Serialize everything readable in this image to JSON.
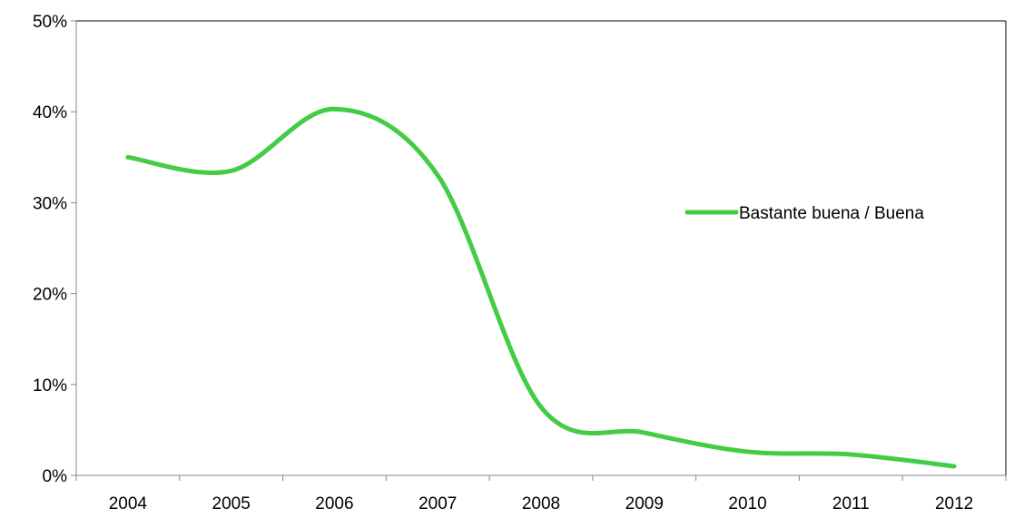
{
  "chart_data": {
    "type": "line",
    "categories": [
      "2004",
      "2005",
      "2006",
      "2007",
      "2008",
      "2009",
      "2010",
      "2011",
      "2012"
    ],
    "series": [
      {
        "name": "Bastante buena / Buena",
        "values": [
          35.0,
          33.5,
          40.3,
          33.0,
          7.5,
          4.7,
          2.6,
          2.3,
          1.0
        ],
        "color": "#44cc44"
      }
    ],
    "ylim": [
      0,
      50
    ],
    "yticks": [
      0,
      10,
      20,
      30,
      40,
      50
    ],
    "ytick_format": "percent",
    "grid": false,
    "legend": "right"
  }
}
